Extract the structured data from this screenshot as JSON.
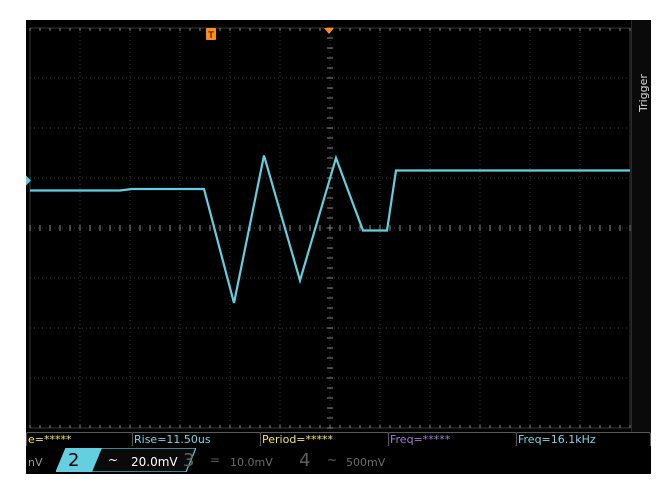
{
  "trigger": {
    "label": "Trigger",
    "marker": "T"
  },
  "measurements": [
    {
      "text": "e=*****",
      "color": "#f5e663"
    },
    {
      "text": "Rise=11.50us",
      "color": "#7dd8e6"
    },
    {
      "text": "Period=*****",
      "color": "#f5e663"
    },
    {
      "text": "Freq=*****",
      "color": "#9b7fd0"
    },
    {
      "text": "Freq=16.1kHz",
      "color": "#7dd8e6"
    }
  ],
  "channels": [
    {
      "partial_scale": "nV",
      "color": "#f5e663"
    },
    {
      "number": "2",
      "coupling": "~",
      "scale": "20.0mV",
      "color": "#7dd8e6",
      "active": true
    },
    {
      "number": "3",
      "coupling": "=",
      "scale": "10.0mV",
      "color": "#6d6d6d",
      "active": false
    },
    {
      "number": "4",
      "coupling": "~",
      "scale": "500mV",
      "color": "#6d6d6d",
      "active": false
    }
  ],
  "waveform": {
    "color": "#63cfe0",
    "unit": "div",
    "points": [
      [
        0.0,
        0.75
      ],
      [
        1.5,
        0.75
      ],
      [
        1.7,
        0.78
      ],
      [
        2.9,
        0.78
      ],
      [
        3.4,
        -1.5
      ],
      [
        3.9,
        1.45
      ],
      [
        4.5,
        -1.05
      ],
      [
        5.1,
        1.4
      ],
      [
        5.55,
        -0.05
      ],
      [
        5.95,
        -0.05
      ],
      [
        6.1,
        1.15
      ],
      [
        10.0,
        1.15
      ]
    ]
  },
  "colors": {
    "grid": "#3a3a3a",
    "grid_dots": "#8a8a8a",
    "trigger_marker": "#ff8c1a",
    "ch2_marker": "#63cfe0"
  }
}
